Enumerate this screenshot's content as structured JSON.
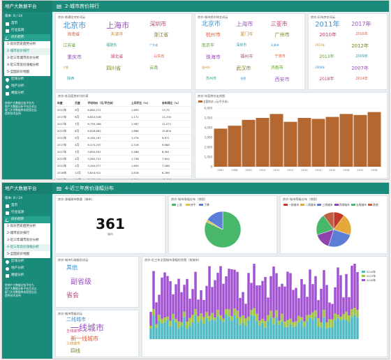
{
  "brand": "地产大数据平台",
  "header_prefix": "3-",
  "version_label": "版本:",
  "version_value": "B / 2X",
  "nav": {
    "home": "首页",
    "industry": "行业监测",
    "price": "房价趋势",
    "price_sub": [
      "1-房价历史趋势分析",
      "2-城市房价排行",
      "3-近三年城市房价分析",
      "4-近三年房价涨幅分析",
      "5-全国房价地图"
    ],
    "region": "区域分析",
    "property": "地产分析",
    "sales": "楼盘分析"
  },
  "footer_text": [
    "房地产大数据分析平台为",
    "地产大数据分析平台方式以",
    "厦门大学数据库实验室出品",
    "提供技术支持"
  ],
  "top": {
    "title": "2-城市房价排行",
    "panel1_title": "房价-普通住宅价词云",
    "panel2_title": "房价-城市房价排名词云",
    "panel3_title": "房价-历年房价词云",
    "table_title": "房价-各月度房价均价表",
    "chart_title": "房价-年度房价走势图",
    "chart_legend": "全国均价 (元/平方米)",
    "cloud1": [
      "北京市",
      "上海市",
      "深圳市",
      "海南省",
      "天津市",
      "浙江省",
      "江苏省",
      "福建省",
      "广东省",
      "重庆市",
      "湖北省",
      "山东省",
      "宁夏",
      "四川省",
      "云南",
      "陕西"
    ],
    "cloud2": [
      "北京市",
      "上海市",
      "三亚市",
      "杭州市",
      "厦门市",
      "广州市",
      "南京市",
      "深圳市",
      "天津市",
      "珠海市",
      "福州市",
      "宁波市",
      "温州市",
      "武汉市",
      "济南市",
      "苏州市",
      "合肥",
      "西安市"
    ],
    "cloud3": [
      "2011年",
      "2017年",
      "2010年",
      "2016年",
      "2015年",
      "2012年",
      "2013年",
      "2009年",
      "2008年",
      "2007年",
      "2018年",
      "2014年"
    ],
    "table_headers": [
      "年度",
      "月度",
      "平均均价（元/平方米）",
      "上月环比（%）",
      "去年同比（%）"
    ],
    "table_rows": [
      [
        "2017年",
        "9月",
        "6,882,271",
        "1,699",
        "13,75"
      ],
      [
        "2017年",
        "8月",
        "6,810,548",
        "1,171",
        "11,250"
      ],
      [
        "2017年",
        "7月",
        "6,755,268",
        "1,567",
        "11,071"
      ],
      [
        "2017年",
        "6月",
        "6,628,862",
        "1,668",
        "10,604"
      ],
      [
        "2017年",
        "5月",
        "6,164,167",
        "1,476",
        "9,871"
      ],
      [
        "2017年",
        "4月",
        "6,470,257",
        "2,316",
        "9,688"
      ],
      [
        "2017年",
        "3月",
        "3,650,551",
        "2,468",
        "8,561"
      ],
      [
        "2017年",
        "2月",
        "3,562,721",
        "1,738",
        "7,644"
      ],
      [
        "2017年",
        "1月",
        "3,440,077",
        "1,609",
        "7,268"
      ],
      [
        "2016年",
        "12月",
        "5,844,921",
        "2,818",
        "6,286"
      ],
      [
        "2016年",
        "11月",
        "7,038,153",
        "1,021",
        "13,456"
      ],
      [
        "2016年",
        "10月",
        "6,851,098",
        "1,021",
        "13,011"
      ],
      [
        "2016年",
        "9月",
        "5,559,730",
        "1,021",
        "4,182"
      ]
    ],
    "chart_y_ticks": [
      "0",
      "1,000",
      "2,000",
      "3,000",
      "4,000",
      "5,000",
      "6,000"
    ],
    "chart_x": [
      "2007",
      "2008",
      "2009",
      "2010",
      "2011",
      "2012",
      "2013",
      "2014",
      "2015",
      "2016",
      "2017",
      "2018"
    ],
    "chart_values": [
      3900,
      4200,
      4800,
      5000,
      5400,
      4600,
      5000,
      4900,
      5100,
      5400,
      5300,
      5600
    ]
  },
  "bottom": {
    "title": "4-近三年房价涨幅分布",
    "p_count_title": "房价-涨幅城市数量（城市）",
    "count_value": "361",
    "count_unit": "城市",
    "pie1_title": "房价-城市涨幅分布（饼图）",
    "pie1_legend": [
      "上涨",
      "持平",
      "下降"
    ],
    "pie2_title": "房价-城市等级分布（饼图）",
    "pie2_legend": [
      "一线城市",
      "二线城市",
      "三线城市",
      "四线城市",
      "五线城市",
      "其他"
    ],
    "tier_title": "房价-城市行政级别词云",
    "tier_words": [
      "其他",
      "副省级",
      "省会"
    ],
    "level_title": "房价-城市等级词云",
    "level_words": [
      "二线城市",
      "一线城市",
      "五线城市",
      "新一线城市",
      "三线城市",
      "四线"
    ],
    "bar_title": "房价-近三年全国城市涨幅柱状图（按城市）",
    "bar_legend": [
      "2016年",
      "2017年",
      "2018年"
    ]
  },
  "colors": {
    "teal": "#1a8a7a",
    "bar": "#b4672e",
    "pieGreen": "#49b86b",
    "pieBlue": "#5b7fd6",
    "purple": "#a050d0",
    "cyan": "#4bb8c4",
    "lime": "#a0c040"
  }
}
